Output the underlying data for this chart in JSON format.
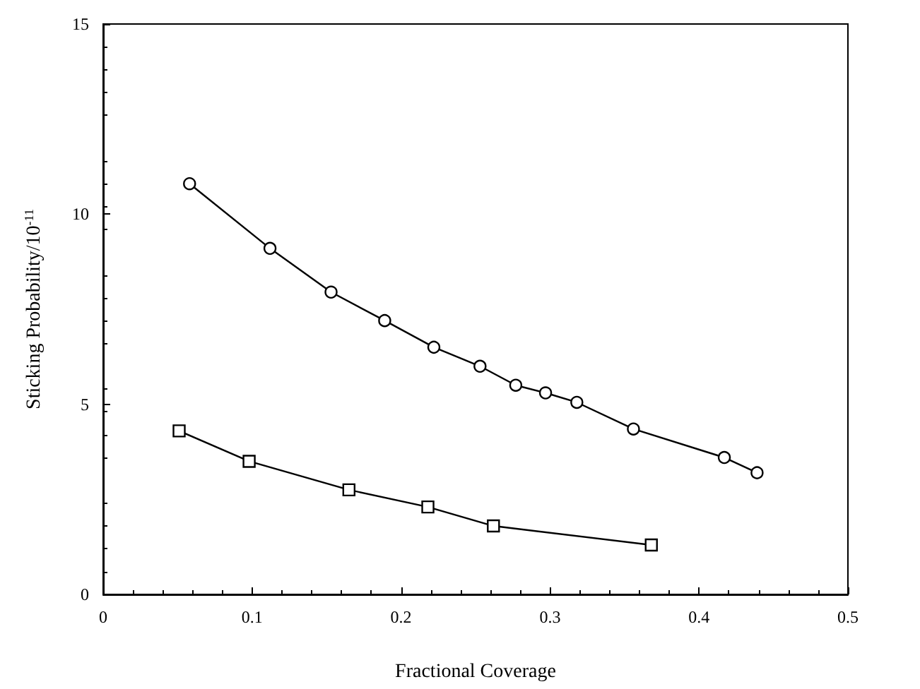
{
  "chart_data": {
    "type": "line",
    "xlabel": "Fractional Coverage",
    "ylabel": "Sticking Probability/10$^{-11}$",
    "xlim": [
      0,
      0.5
    ],
    "ylim": [
      0,
      15
    ],
    "xticks": [
      0,
      0.1,
      0.2,
      0.3,
      0.4,
      0.5
    ],
    "yticks": [
      0,
      5,
      10,
      15
    ],
    "grid": false,
    "series": [
      {
        "color": "#000000",
        "marker": "circle",
        "x": [
          0.058,
          0.112,
          0.153,
          0.189,
          0.222,
          0.253,
          0.277,
          0.297,
          0.318,
          0.356,
          0.417,
          0.439
        ],
        "values": [
          10.8,
          9.1,
          7.95,
          7.2,
          6.5,
          6.0,
          5.5,
          5.3,
          5.05,
          4.35,
          3.6,
          3.2
        ]
      },
      {
        "color": "#000000",
        "marker": "square",
        "x": [
          0.051,
          0.098,
          0.165,
          0.218,
          0.262,
          0.368
        ],
        "values": [
          4.3,
          3.5,
          2.75,
          2.3,
          1.8,
          1.3
        ]
      }
    ]
  }
}
